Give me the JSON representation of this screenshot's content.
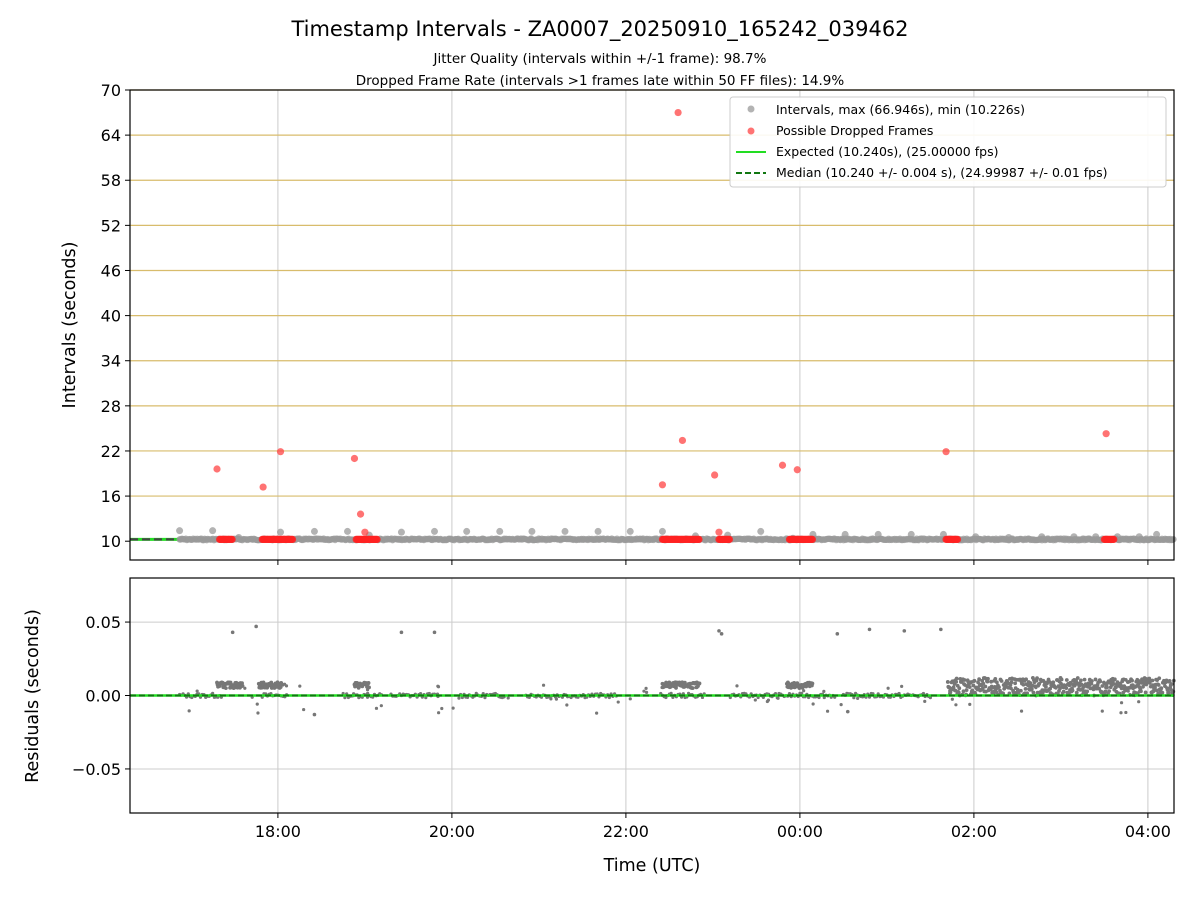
{
  "chart_data": [
    {
      "type": "scatter",
      "title": "Timestamp Intervals - ZA0007_20250910_165242_039462",
      "subtitle_lines": [
        "Jitter Quality (intervals within +/-1 frame): 98.7%",
        "Dropped Frame Rate (intervals >1 frames late within 50 FF files): 14.9%"
      ],
      "xlabel": "",
      "ylabel": "Intervals (seconds)",
      "xlim_hours": [
        16.3,
        28.3
      ],
      "ylim": [
        7.5,
        70
      ],
      "yticks": [
        10,
        16,
        22,
        28,
        34,
        40,
        46,
        52,
        58,
        64,
        70
      ],
      "ytick_labels": [
        "10",
        "16",
        "22",
        "28",
        "34",
        "40",
        "46",
        "52",
        "58",
        "64",
        "70"
      ],
      "legend": {
        "placement": "top-right",
        "entries": [
          {
            "label": "Intervals, max (66.946s), min (10.226s)",
            "color": "#999999",
            "kind": "marker"
          },
          {
            "label": "Possible Dropped Frames",
            "color": "#ff5555",
            "kind": "marker"
          },
          {
            "label": "Expected (10.240s), (25.00000 fps)",
            "color": "#22dd22",
            "kind": "line"
          },
          {
            "label": "Median (10.240 +/- 0.004 s), (24.99987 +/- 0.01 fps)",
            "color": "#117711",
            "kind": "dashed"
          }
        ]
      },
      "expected_interval": 10.24,
      "median_interval": 10.24,
      "gray_points": {
        "x": [
          16.87,
          17.25,
          17.55,
          18.03,
          18.42,
          18.8,
          19.05,
          19.42,
          19.8,
          20.17,
          20.55,
          20.92,
          21.3,
          21.68,
          22.05,
          22.42,
          22.8,
          23.17,
          23.55,
          23.92,
          24.15,
          24.52,
          24.9,
          25.28,
          25.65,
          26.02,
          26.4,
          26.78,
          27.15,
          27.4,
          27.65,
          27.9,
          28.1
        ],
        "y": [
          11.4,
          11.4,
          10.5,
          11.2,
          11.3,
          11.3,
          10.8,
          11.2,
          11.3,
          11.3,
          11.3,
          11.3,
          11.3,
          11.3,
          11.3,
          11.3,
          10.7,
          10.8,
          11.3,
          10.4,
          10.9,
          10.9,
          10.9,
          10.9,
          10.9,
          10.6,
          10.5,
          10.6,
          10.6,
          10.6,
          10.6,
          10.6,
          10.9
        ]
      },
      "red_points": {
        "x": [
          17.3,
          17.83,
          18.03,
          18.88,
          18.95,
          19.0,
          22.42,
          22.6,
          22.65,
          23.02,
          23.07,
          23.8,
          23.97,
          25.68,
          27.52
        ],
        "y": [
          19.6,
          17.2,
          21.9,
          21.0,
          13.6,
          11.2,
          17.5,
          67.0,
          23.4,
          18.8,
          11.2,
          20.1,
          19.5,
          21.9,
          24.3
        ]
      },
      "red_clusters_hours": [
        [
          17.33,
          17.48
        ],
        [
          17.82,
          18.18
        ],
        [
          18.9,
          19.15
        ],
        [
          22.42,
          22.85
        ],
        [
          23.07,
          23.2
        ],
        [
          23.88,
          24.15
        ],
        [
          25.68,
          25.82
        ],
        [
          27.5,
          27.62
        ]
      ]
    },
    {
      "type": "scatter",
      "title": "",
      "xlabel": "Time (UTC)",
      "ylabel": "Residuals (seconds)",
      "xlim_hours": [
        16.3,
        28.3
      ],
      "ylim": [
        -0.08,
        0.08
      ],
      "yticks": [
        -0.05,
        0.0,
        0.05
      ],
      "ytick_labels": [
        "−0.05",
        "0.00",
        "0.05"
      ],
      "xticks_hours": [
        18,
        20,
        22,
        24,
        26,
        28
      ],
      "xtick_labels": [
        "18:00",
        "20:00",
        "22:00",
        "00:00",
        "02:00",
        "04:00"
      ],
      "outlier_points": {
        "x": [
          17.48,
          17.75,
          18.42,
          19.42,
          19.8,
          23.07,
          23.1,
          24.43,
          24.8,
          25.2,
          25.62,
          24.55
        ],
        "y": [
          0.043,
          0.047,
          -0.013,
          0.043,
          0.043,
          0.044,
          0.042,
          0.042,
          0.045,
          0.044,
          0.045,
          -0.011
        ]
      },
      "baseline_clusters_hours": [
        [
          16.87,
          17.35
        ],
        [
          17.82,
          18.1
        ],
        [
          18.75,
          19.2
        ],
        [
          19.3,
          19.85
        ],
        [
          20.1,
          20.6
        ],
        [
          20.85,
          21.9
        ],
        [
          22.4,
          22.9
        ],
        [
          23.2,
          24.4
        ],
        [
          24.5,
          25.5
        ]
      ],
      "raised_clusters": [
        {
          "x_range": [
            17.3,
            17.6
          ],
          "y": 0.007
        },
        {
          "x_range": [
            17.78,
            18.05
          ],
          "y": 0.007
        },
        {
          "x_range": [
            18.88,
            19.05
          ],
          "y": 0.007
        },
        {
          "x_range": [
            22.42,
            22.85
          ],
          "y": 0.007
        },
        {
          "x_range": [
            23.85,
            24.15
          ],
          "y": 0.007
        },
        {
          "x_range": [
            25.7,
            28.3
          ],
          "y": 0.006
        }
      ]
    }
  ]
}
